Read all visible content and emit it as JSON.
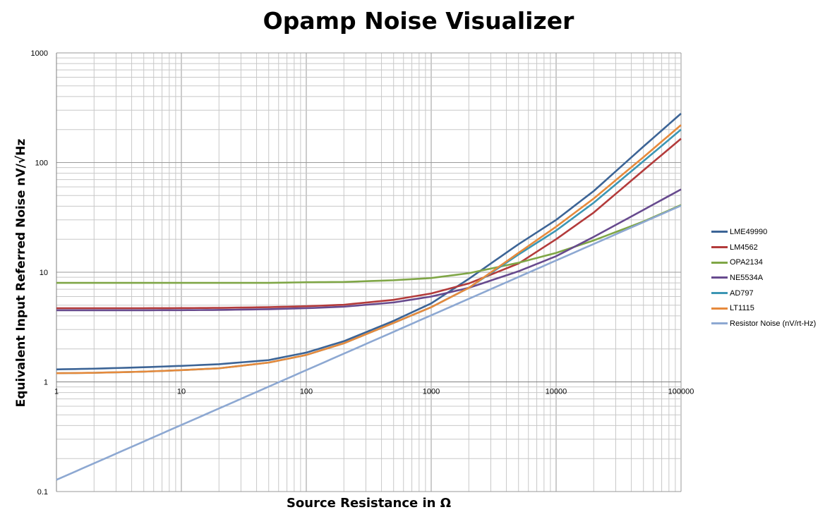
{
  "chart_data": {
    "type": "line",
    "title": "Opamp Noise Visualizer",
    "xlabel": "Source Resistance in Ω",
    "ylabel": "Equivalent Input Referred Noise  nV/√Hz",
    "x_scale": "log",
    "y_scale": "log",
    "xlim": [
      1,
      100000
    ],
    "ylim": [
      0.1,
      1000
    ],
    "x_ticks": [
      "1",
      "10",
      "100",
      "1000",
      "10000",
      "100000"
    ],
    "y_ticks": [
      "0.1",
      "1",
      "10",
      "100",
      "1000"
    ],
    "grid": true,
    "legend_position": "right",
    "x": [
      1,
      2,
      5,
      10,
      20,
      50,
      100,
      200,
      500,
      1000,
      2000,
      5000,
      10000,
      20000,
      50000,
      100000
    ],
    "series": [
      {
        "name": "LME49990",
        "color": "#3c6496",
        "values": [
          1.3,
          1.32,
          1.36,
          1.4,
          1.45,
          1.58,
          1.85,
          2.35,
          3.6,
          5.2,
          8.7,
          18,
          30,
          55,
          140,
          280
        ]
      },
      {
        "name": "LM4562",
        "color": "#b33b3b",
        "values": [
          4.7,
          4.7,
          4.7,
          4.71,
          4.73,
          4.8,
          4.9,
          5.05,
          5.6,
          6.4,
          7.9,
          12,
          20,
          35,
          85,
          165
        ]
      },
      {
        "name": "OPA2134",
        "color": "#7fa646",
        "values": [
          8,
          8,
          8,
          8,
          8,
          8,
          8.1,
          8.15,
          8.45,
          8.85,
          9.8,
          12.2,
          15,
          19.5,
          29,
          41
        ]
      },
      {
        "name": "NE5534A",
        "color": "#674a8e",
        "values": [
          4.5,
          4.5,
          4.5,
          4.51,
          4.53,
          4.6,
          4.7,
          4.85,
          5.3,
          6.0,
          7.2,
          10.2,
          14,
          21,
          37,
          57
        ]
      },
      {
        "name": "AD797",
        "color": "#3c96b4",
        "values": [
          1.2,
          1.21,
          1.24,
          1.28,
          1.33,
          1.5,
          1.76,
          2.25,
          3.45,
          4.8,
          7.2,
          14.5,
          24,
          43,
          103,
          200
        ]
      },
      {
        "name": "LT1115",
        "color": "#e68a3c",
        "values": [
          1.2,
          1.21,
          1.24,
          1.28,
          1.33,
          1.5,
          1.76,
          2.25,
          3.45,
          4.8,
          7.2,
          15,
          26,
          47,
          112,
          220
        ]
      },
      {
        "name": "Resistor Noise (nV/rt-Hz)",
        "color": "#8da8d2",
        "values": [
          0.128,
          0.181,
          0.286,
          0.405,
          0.572,
          0.905,
          1.28,
          1.81,
          2.86,
          4.05,
          5.72,
          9.05,
          12.8,
          18.1,
          28.6,
          40.5
        ]
      }
    ]
  }
}
